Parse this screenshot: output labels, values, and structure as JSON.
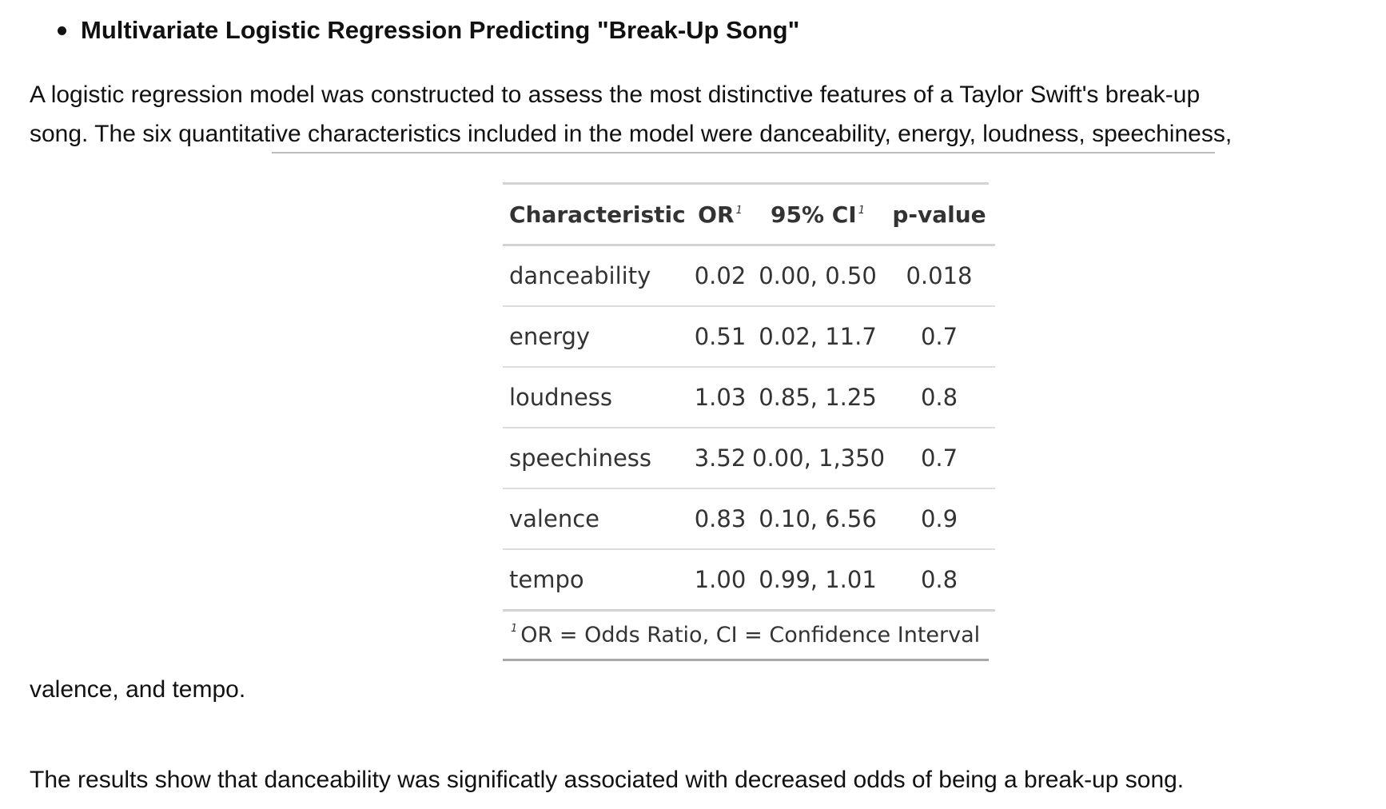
{
  "heading": "Multivariate Logistic Regression Predicting \"Break-Up Song\"",
  "paragraphs": {
    "intro_line1": "A logistic regression model was constructed to assess the most distinctive features of a Taylor Swift's break-up",
    "intro_line2": "song. The six quantitative characteristics included in the model were danceability, energy, loudness, speechiness,",
    "intro_continued": "valence, and tempo.",
    "results": "The results show that danceability was significatly associated with decreased odds of being a break-up song."
  },
  "table": {
    "headers": {
      "characteristic": "Characteristic",
      "or": "OR",
      "ci": "95% CI",
      "p": "p-value",
      "footnote_marker": "1"
    },
    "rows": [
      {
        "characteristic": "danceability",
        "or": "0.02",
        "ci": "0.00, 0.50",
        "p": "0.018"
      },
      {
        "characteristic": "energy",
        "or": "0.51",
        "ci": "0.02, 11.7",
        "p": "0.7"
      },
      {
        "characteristic": "loudness",
        "or": "1.03",
        "ci": "0.85, 1.25",
        "p": "0.8"
      },
      {
        "characteristic": "speechiness",
        "or": "3.52",
        "ci": "0.00, 1,350",
        "p": "0.7"
      },
      {
        "characteristic": "valence",
        "or": "0.83",
        "ci": "0.10, 6.56",
        "p": "0.9"
      },
      {
        "characteristic": "tempo",
        "or": "1.00",
        "ci": "0.99, 1.01",
        "p": "0.8"
      }
    ],
    "footnote": "OR = Odds Ratio, CI = Confidence Interval"
  }
}
